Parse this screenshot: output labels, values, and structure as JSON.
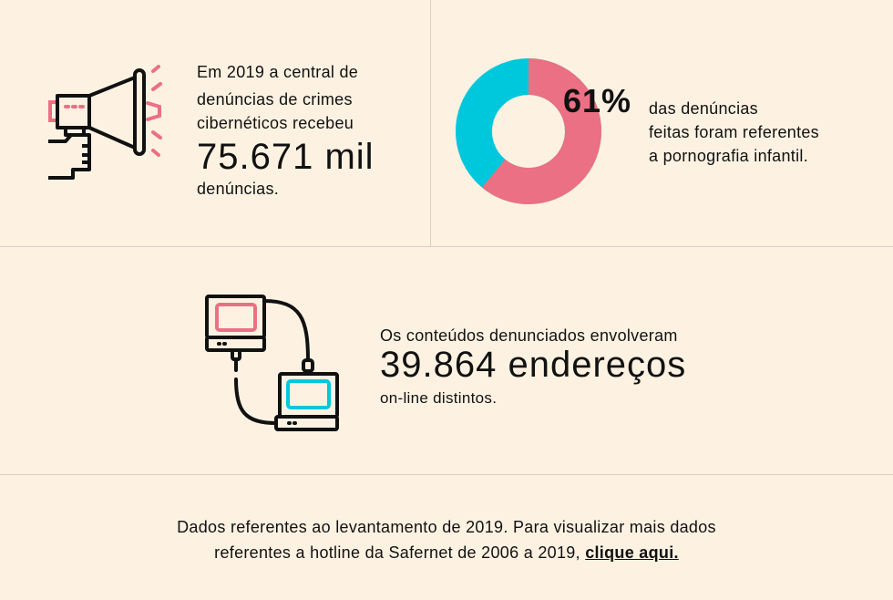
{
  "stat1": {
    "line1": "Em 2019 a central de",
    "line2": "denúncias de crimes",
    "line3": "cibernéticos recebeu",
    "value": "75.671 mil",
    "line4": "denúncias."
  },
  "stat2": {
    "percent": "61%",
    "line1": "das denúncias",
    "line2": "feitas foram referentes",
    "line3": "a pornografia infantil.",
    "share": 61
  },
  "stat3": {
    "line1": "Os conteúdos denunciados envolveram",
    "value": "39.864 endereços",
    "line2": "on-line distintos."
  },
  "footer": {
    "line1": "Dados referentes ao levantamento de 2019.  Para visualizar mais dados",
    "line2": "referentes a hotline da Safernet de 2006 a 2019,",
    "link": "clique aqui."
  },
  "colors": {
    "pink": "#ec7083",
    "cyan": "#00c8dc",
    "bg": "#fdf2e2"
  }
}
